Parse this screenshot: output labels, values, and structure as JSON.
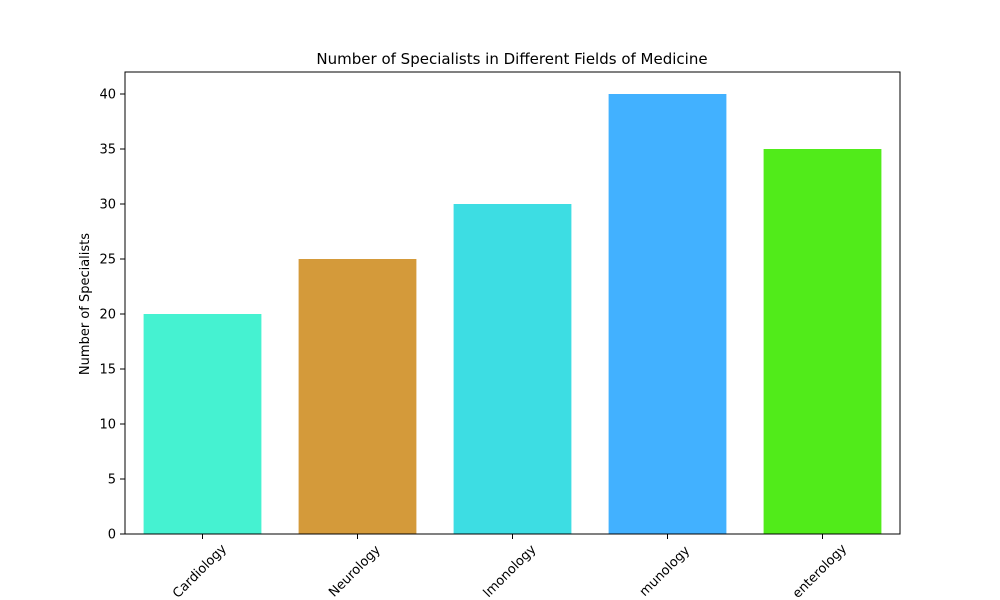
{
  "chart_data": {
    "type": "bar",
    "title": "Number of Specialists in Different Fields of Medicine",
    "xlabel": "",
    "ylabel": "Number of Specialists",
    "categories": [
      "Cardiology",
      "Neurology",
      "Pulmonology",
      "Immunology",
      "Gastroenterology"
    ],
    "visible_tick_text": [
      "Cardiology",
      "Neurology",
      "lmonology",
      "munology",
      "enterology"
    ],
    "values": [
      20,
      25,
      30,
      40,
      35
    ],
    "colors": [
      "#45f2d1",
      "#d49a3a",
      "#3ddde3",
      "#42b1ff",
      "#51eb1a"
    ],
    "ylim": [
      0,
      42
    ],
    "yticks": [
      0,
      5,
      10,
      15,
      20,
      25,
      30,
      35,
      40
    ],
    "grid": false,
    "legend": "none"
  }
}
